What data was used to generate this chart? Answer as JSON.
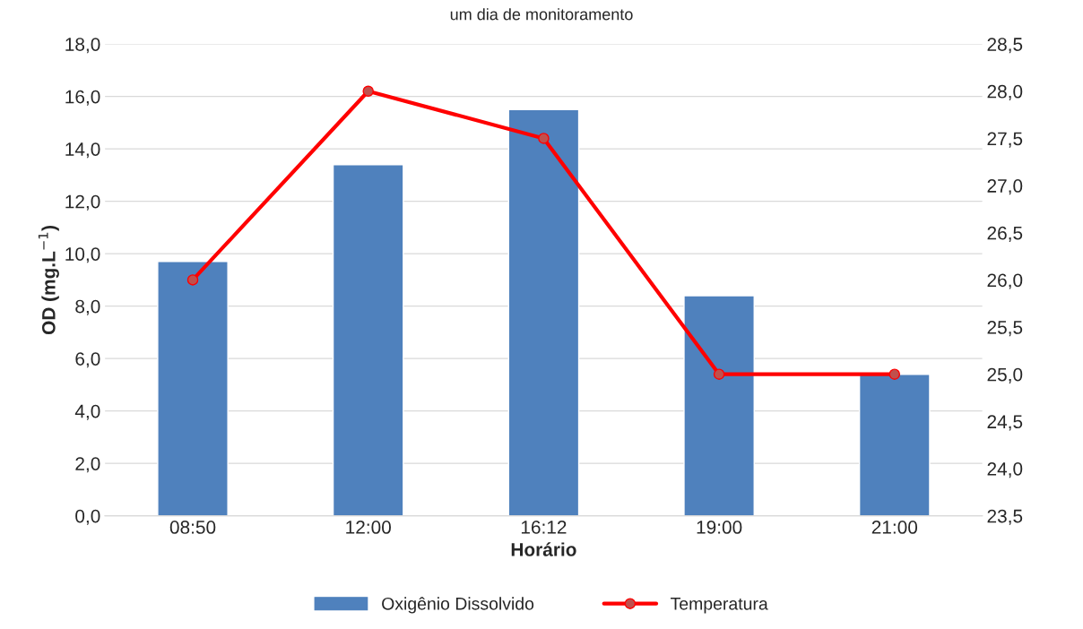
{
  "chart_data": {
    "type": "bar",
    "title": "um dia de monitoramento",
    "xlabel": "Horário",
    "ylabel": "OD (mg.L$^{−1}$)",
    "categories": [
      "08:50",
      "12:00",
      "16:12",
      "19:00",
      "21:00"
    ],
    "series": [
      {
        "name": "Oxigênio Dissolvido",
        "color": "#4f81bd",
        "values": [
          9.7,
          13.4,
          15.5,
          8.4,
          5.4
        ]
      },
      {
        "name": "Temperatura",
        "color": "#ff0000",
        "type": "line",
        "axis": "y2",
        "marker": "circle",
        "values": [
          26.0,
          28.0,
          27.5,
          25.0,
          25.0
        ]
      }
    ],
    "ylim": [
      0,
      18
    ],
    "yticks": [
      {
        "value": 0,
        "label": "0,0"
      },
      {
        "value": 2,
        "label": "2,0"
      },
      {
        "value": 4,
        "label": "4,0"
      },
      {
        "value": 6,
        "label": "6,0"
      },
      {
        "value": 8,
        "label": "8,0"
      },
      {
        "value": 10,
        "label": "10,0"
      },
      {
        "value": 12,
        "label": "12,0"
      },
      {
        "value": 14,
        "label": "14,0"
      },
      {
        "value": 16,
        "label": "16,0"
      },
      {
        "value": 18,
        "label": "18,0"
      }
    ],
    "y2lim": [
      23.5,
      28.5
    ],
    "y2ticks": [
      {
        "value": 23.5,
        "label": "23,5"
      },
      {
        "value": 24,
        "label": "24,0"
      },
      {
        "value": 24.5,
        "label": "24,5"
      },
      {
        "value": 25,
        "label": "25,0"
      },
      {
        "value": 25.5,
        "label": "25,5"
      },
      {
        "value": 26,
        "label": "26,0"
      },
      {
        "value": 26.5,
        "label": "26,5"
      },
      {
        "value": 27,
        "label": "27,0"
      },
      {
        "value": 27.5,
        "label": "27,5"
      },
      {
        "value": 28,
        "label": "28,0"
      },
      {
        "value": 28.5,
        "label": "28,5"
      }
    ],
    "grid": "y",
    "legend": "bottom"
  }
}
